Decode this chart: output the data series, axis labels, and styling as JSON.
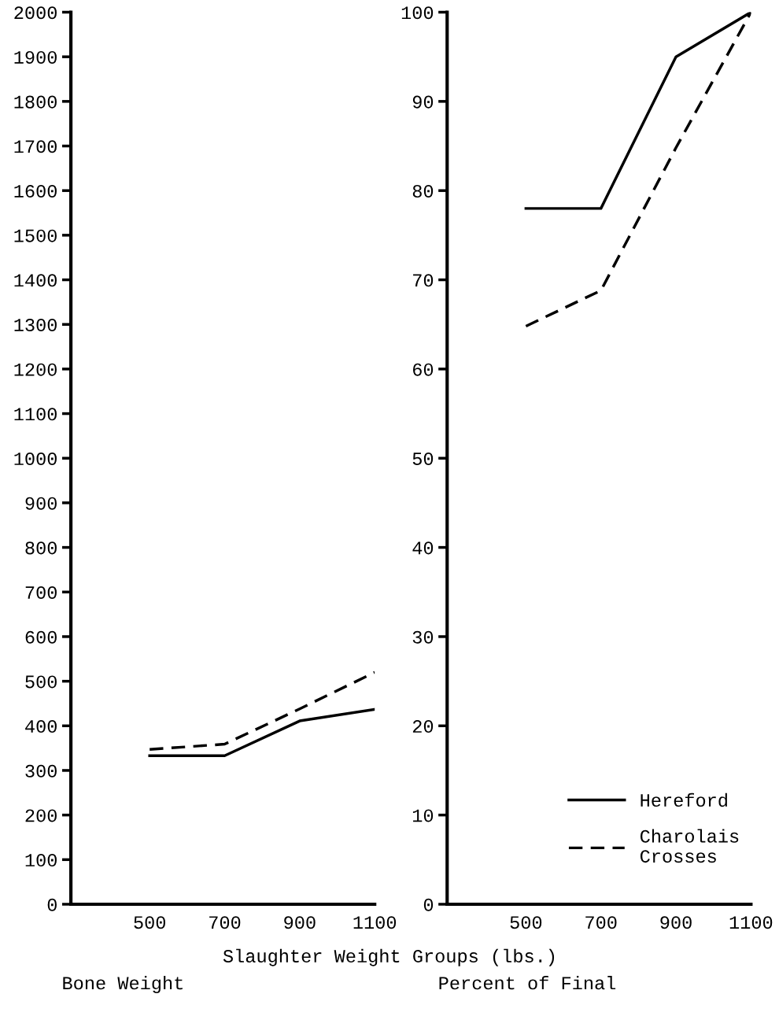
{
  "chart_data": [
    {
      "type": "line",
      "title": "Bone Weight",
      "xlabel": "Slaughter Weight Groups (lbs.)",
      "x": [
        500,
        700,
        900,
        1100
      ],
      "series": [
        {
          "color": "#000000",
          "line_style": "solid",
          "values": [
            333,
            333,
            411,
            437
          ]
        },
        {
          "color": "#000000",
          "line_style": "dashed",
          "values": [
            347,
            359,
            438,
            520
          ]
        }
      ],
      "xlim": [
        290,
        1100
      ],
      "xticks": [
        500,
        700,
        900,
        1100
      ],
      "ylim": [
        0,
        2000
      ],
      "yticks": [
        0,
        100,
        200,
        300,
        400,
        500,
        600,
        700,
        800,
        900,
        1000,
        1100,
        1200,
        1300,
        1400,
        1500,
        1600,
        1700,
        1800,
        1900,
        2000
      ],
      "grid": false,
      "legend": false
    },
    {
      "type": "line",
      "title": "Percent of Final",
      "x": [
        500,
        700,
        900,
        1100
      ],
      "series": [
        {
          "name": "Hereford",
          "color": "#000000",
          "line_style": "solid",
          "values": [
            78,
            78,
            95,
            100
          ]
        },
        {
          "name": "Charolais\nCrosses",
          "color": "#000000",
          "line_style": "dashed",
          "values": [
            64.8,
            68.8,
            84.8,
            100
          ]
        }
      ],
      "xlim": [
        290,
        1100
      ],
      "xticks": [
        500,
        700,
        900,
        1100
      ],
      "ylim": [
        0,
        100
      ],
      "yticks": [
        0,
        10,
        20,
        30,
        40,
        50,
        60,
        70,
        80,
        90,
        100
      ],
      "grid": false,
      "legend": "bottom right"
    }
  ]
}
